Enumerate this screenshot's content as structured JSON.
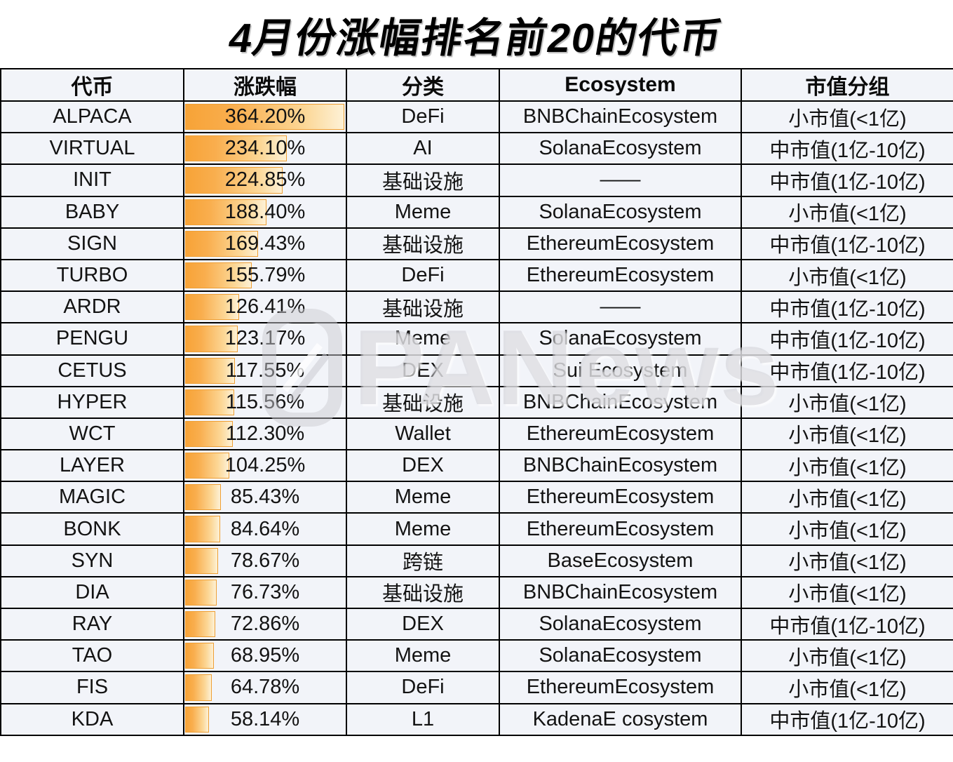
{
  "title": "4月份涨幅排名前20的代币",
  "watermark": {
    "text": "PANews"
  },
  "chart_data": {
    "type": "table",
    "title": "4月份涨幅排名前20的代币",
    "columns": [
      "代币",
      "涨跌幅",
      "分类",
      "Ecosystem",
      "市值分组"
    ],
    "bar_column": "涨跌幅",
    "bar_max": 364.2,
    "rows": [
      {
        "token": "ALPACA",
        "change_label": "364.20%",
        "change_value": 364.2,
        "category": "DeFi",
        "ecosystem": "BNBChainEcosystem",
        "mcap_group": "小市值(<1亿)"
      },
      {
        "token": "VIRTUAL",
        "change_label": "234.10%",
        "change_value": 234.1,
        "category": "AI",
        "ecosystem": "SolanaEcosystem",
        "mcap_group": "中市值(1亿-10亿)"
      },
      {
        "token": "INIT",
        "change_label": "224.85%",
        "change_value": 224.85,
        "category": "基础设施",
        "ecosystem": "——",
        "mcap_group": "中市值(1亿-10亿)"
      },
      {
        "token": "BABY",
        "change_label": "188.40%",
        "change_value": 188.4,
        "category": "Meme",
        "ecosystem": "SolanaEcosystem",
        "mcap_group": "小市值(<1亿)"
      },
      {
        "token": "SIGN",
        "change_label": "169.43%",
        "change_value": 169.43,
        "category": "基础设施",
        "ecosystem": "EthereumEcosystem",
        "mcap_group": "中市值(1亿-10亿)"
      },
      {
        "token": "TURBO",
        "change_label": "155.79%",
        "change_value": 155.79,
        "category": "DeFi",
        "ecosystem": "EthereumEcosystem",
        "mcap_group": "小市值(<1亿)"
      },
      {
        "token": "ARDR",
        "change_label": "126.41%",
        "change_value": 126.41,
        "category": "基础设施",
        "ecosystem": "——",
        "mcap_group": "中市值(1亿-10亿)"
      },
      {
        "token": "PENGU",
        "change_label": "123.17%",
        "change_value": 123.17,
        "category": "Meme",
        "ecosystem": "SolanaEcosystem",
        "mcap_group": "中市值(1亿-10亿)"
      },
      {
        "token": "CETUS",
        "change_label": "117.55%",
        "change_value": 117.55,
        "category": "DEX",
        "ecosystem": "Sui Ecosystem",
        "mcap_group": "中市值(1亿-10亿)"
      },
      {
        "token": "HYPER",
        "change_label": "115.56%",
        "change_value": 115.56,
        "category": "基础设施",
        "ecosystem": "BNBChainEcosystem",
        "mcap_group": "小市值(<1亿)"
      },
      {
        "token": "WCT",
        "change_label": "112.30%",
        "change_value": 112.3,
        "category": "Wallet",
        "ecosystem": "EthereumEcosystem",
        "mcap_group": "小市值(<1亿)"
      },
      {
        "token": "LAYER",
        "change_label": "104.25%",
        "change_value": 104.25,
        "category": "DEX",
        "ecosystem": "BNBChainEcosystem",
        "mcap_group": "小市值(<1亿)"
      },
      {
        "token": "MAGIC",
        "change_label": "85.43%",
        "change_value": 85.43,
        "category": "Meme",
        "ecosystem": "EthereumEcosystem",
        "mcap_group": "小市值(<1亿)"
      },
      {
        "token": "BONK",
        "change_label": "84.64%",
        "change_value": 84.64,
        "category": "Meme",
        "ecosystem": "EthereumEcosystem",
        "mcap_group": "小市值(<1亿)"
      },
      {
        "token": "SYN",
        "change_label": "78.67%",
        "change_value": 78.67,
        "category": "跨链",
        "ecosystem": "BaseEcosystem",
        "mcap_group": "小市值(<1亿)"
      },
      {
        "token": "DIA",
        "change_label": "76.73%",
        "change_value": 76.73,
        "category": "基础设施",
        "ecosystem": "BNBChainEcosystem",
        "mcap_group": "小市值(<1亿)"
      },
      {
        "token": "RAY",
        "change_label": "72.86%",
        "change_value": 72.86,
        "category": "DEX",
        "ecosystem": "SolanaEcosystem",
        "mcap_group": "中市值(1亿-10亿)"
      },
      {
        "token": "TAO",
        "change_label": "68.95%",
        "change_value": 68.95,
        "category": "Meme",
        "ecosystem": "SolanaEcosystem",
        "mcap_group": "小市值(<1亿)"
      },
      {
        "token": "FIS",
        "change_label": "64.78%",
        "change_value": 64.78,
        "category": "DeFi",
        "ecosystem": "EthereumEcosystem",
        "mcap_group": "小市值(<1亿)"
      },
      {
        "token": "KDA",
        "change_label": "58.14%",
        "change_value": 58.14,
        "category": "L1",
        "ecosystem": "KadenaE cosystem",
        "mcap_group": "中市值(1亿-10亿)"
      }
    ],
    "colors": {
      "bar_fill_start": "#f7a337",
      "bar_fill_end": "#fdf1d6",
      "bar_border": "#ef9f33",
      "grid": "#000000",
      "cell_background": "#f2f4f9",
      "text": "#131313"
    },
    "layout": {
      "grid": "on",
      "bar_origin": "left-of-cell",
      "bars_scaled_to_max": true
    }
  }
}
